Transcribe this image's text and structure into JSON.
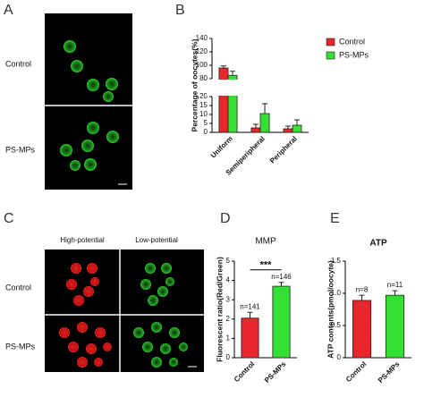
{
  "panels": {
    "A": {
      "letter": "A",
      "row_labels": [
        "Control",
        "PS-MPs"
      ]
    },
    "C": {
      "letter": "C",
      "column_labels": [
        "High-potential",
        "Low-potential"
      ],
      "row_labels": [
        "Control",
        "PS-MPs"
      ]
    }
  },
  "chart_data": [
    {
      "type": "bar",
      "panel": "B",
      "ylabel": "Percentage of oocytes(%)",
      "categories": [
        "Uniform",
        "Semiperipheral",
        "Peripheral"
      ],
      "series": [
        {
          "name": "Control",
          "color": "#e8262b",
          "values": [
            96,
            2.5,
            2
          ],
          "errors": [
            3,
            2,
            1.5
          ]
        },
        {
          "name": "PS-MPs",
          "color": "#33e033",
          "values": [
            85,
            10.5,
            4
          ],
          "errors": [
            6,
            5.5,
            3
          ]
        }
      ],
      "ylim": [
        0,
        140
      ],
      "y_break": [
        20,
        80
      ],
      "yticks": [
        0,
        5,
        10,
        15,
        20,
        80,
        100,
        120,
        140
      ],
      "legend": "right"
    },
    {
      "type": "bar",
      "panel": "D",
      "title": "MMP",
      "ylabel": "Fluorescent ratio(Red/Green)",
      "categories": [
        "Control",
        "PS-MPs"
      ],
      "values": [
        2.05,
        3.7
      ],
      "errors": [
        0.3,
        0.2
      ],
      "colors": [
        "#e8262b",
        "#33e033"
      ],
      "n_labels": [
        "n=141",
        "n=146"
      ],
      "significance": "***",
      "ylim": [
        0,
        5
      ],
      "yticks": [
        0,
        1,
        2,
        3,
        4,
        5
      ]
    },
    {
      "type": "bar",
      "panel": "E",
      "title": "ATP",
      "ylabel": "ATP contents(pmol/oocyte)",
      "categories": [
        "Control",
        "PS-MPs"
      ],
      "values": [
        0.89,
        0.97
      ],
      "errors": [
        0.08,
        0.07
      ],
      "colors": [
        "#e8262b",
        "#33e033"
      ],
      "n_labels": [
        "n=8",
        "n=11"
      ],
      "ylim": [
        0,
        1.5
      ],
      "yticks": [
        0,
        0.5,
        {
          "value": 1,
          "label": "1.0"
        },
        1.5
      ]
    }
  ]
}
